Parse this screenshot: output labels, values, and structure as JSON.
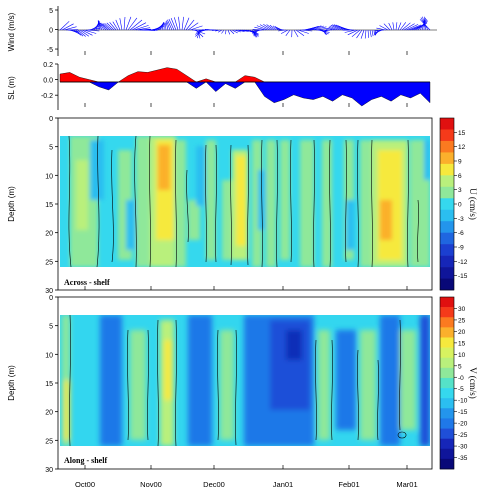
{
  "chart_data": [
    {
      "type": "line",
      "ylabel": "Wind (m/s)",
      "yticks": [
        5,
        0,
        -5
      ],
      "ylim": [
        -7,
        5
      ],
      "note": "wind vector stick plot"
    },
    {
      "type": "area",
      "ylabel": "SL (m)",
      "yticks": [
        0.2,
        0,
        -0.2
      ],
      "ylim": [
        -0.35,
        0.22
      ],
      "series": [
        {
          "x": [
            0,
            4,
            8,
            12,
            16,
            20,
            24,
            28,
            32,
            36,
            40,
            44,
            48,
            52,
            56,
            60,
            64,
            68,
            72,
            76,
            80,
            84,
            88,
            92,
            96,
            100,
            104,
            108,
            112,
            116,
            120,
            124,
            128,
            132,
            136,
            140,
            144,
            148,
            152
          ],
          "values": [
            0.1,
            0.12,
            0.06,
            0.03,
            -0.06,
            -0.1,
            0.0,
            0.08,
            0.13,
            0.12,
            0.15,
            0.18,
            0.16,
            0.08,
            -0.08,
            0.04,
            -0.12,
            -0.02,
            -0.08,
            0.08,
            0.06,
            -0.18,
            -0.26,
            -0.22,
            -0.16,
            -0.2,
            -0.22,
            -0.18,
            -0.24,
            -0.16,
            -0.2,
            -0.3,
            -0.22,
            -0.18,
            -0.24,
            -0.16,
            -0.2,
            -0.14,
            -0.26
          ]
        }
      ]
    },
    {
      "type": "heatmap",
      "ylabel": "Depth (m)",
      "yticks": [
        0,
        5,
        10,
        15,
        20,
        25,
        30
      ],
      "ylim": [
        0,
        30
      ],
      "label": "Across - shelf",
      "colorbar_title": "U (cm/s)",
      "colorbar_ticks": [
        "15",
        "12",
        "9",
        "6",
        "3",
        "0",
        "-3",
        "-6",
        "-9",
        "-12",
        "-15"
      ]
    },
    {
      "type": "heatmap",
      "ylabel": "Depth (m)",
      "yticks": [
        0,
        5,
        10,
        15,
        20,
        25,
        30
      ],
      "ylim": [
        0,
        30
      ],
      "label": "Along - shelf",
      "colorbar_title": "V (cm/s)",
      "colorbar_ticks": [
        "30",
        "25",
        "20",
        "15",
        "10",
        "5",
        "-0",
        "-5",
        "-10",
        "-15",
        "-20",
        "-25",
        "-30",
        "-35"
      ]
    }
  ],
  "xaxis": {
    "tick_labels": [
      "Oct00",
      "Nov00",
      "Dec00",
      "Jan01",
      "Feb01",
      "Mar01"
    ]
  },
  "colors": {
    "positive": "#ff0000",
    "negative": "#0000ff"
  }
}
